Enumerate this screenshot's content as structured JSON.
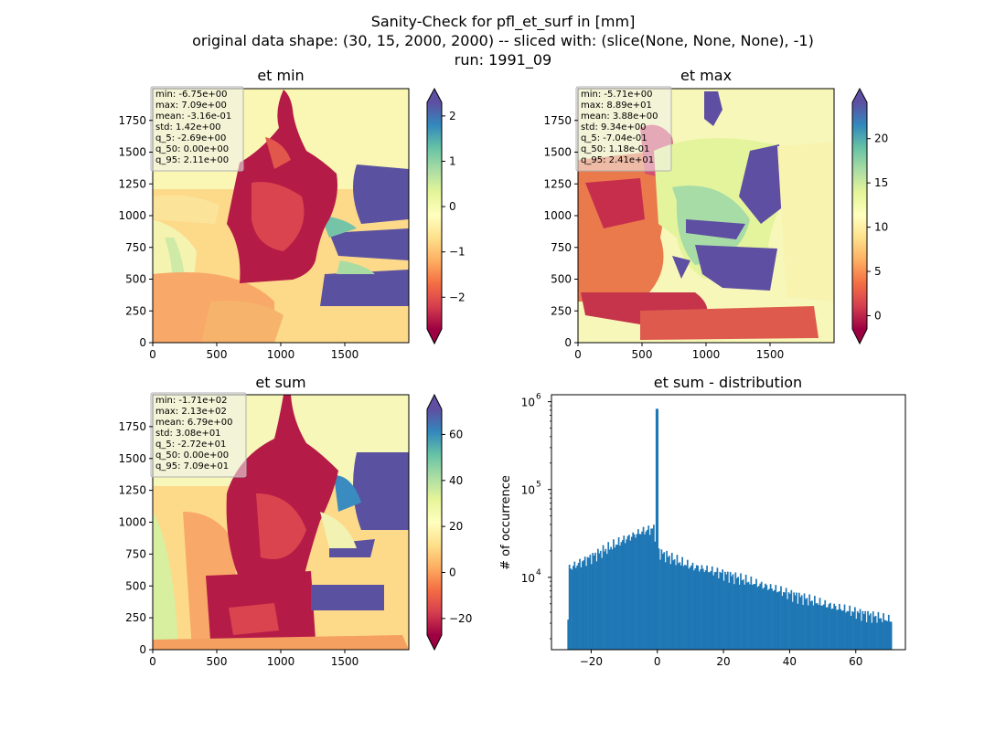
{
  "figure": {
    "title_lines": [
      "Sanity-Check for pfl_et_surf in [mm]",
      "original data shape: (30, 15, 2000, 2000) -- sliced with: (slice(None, None, None), -1)",
      "run: 1991_09"
    ]
  },
  "chart_data": [
    {
      "type": "heatmap",
      "title": "et min",
      "xlim": [
        0,
        2000
      ],
      "ylim": [
        0,
        2000
      ],
      "xticks": [
        "0",
        "500",
        "1000",
        "1500"
      ],
      "yticks": [
        "0",
        "250",
        "500",
        "750",
        "1000",
        "1250",
        "1500",
        "1750"
      ],
      "colorbar": {
        "ticks": [
          "2",
          "1",
          "0",
          "−1",
          "−2"
        ],
        "tick_values": [
          2,
          1,
          0,
          -1,
          -2
        ],
        "range": [
          -2.7,
          2.3
        ],
        "cmap": "Spectral"
      },
      "stats": [
        "min: -6.75e+00",
        "max: 7.09e+00",
        "mean: -3.16e-01",
        "std: 1.42e+00",
        "q_5: -2.69e+00",
        "q_50: 0.00e+00",
        "q_95: 2.11e+00"
      ]
    },
    {
      "type": "heatmap",
      "title": "et max",
      "xlim": [
        0,
        2000
      ],
      "ylim": [
        0,
        2000
      ],
      "xticks": [
        "0",
        "500",
        "1000",
        "1500"
      ],
      "yticks": [
        "0",
        "250",
        "500",
        "750",
        "1000",
        "1250",
        "1500",
        "1750"
      ],
      "colorbar": {
        "ticks": [
          "20",
          "15",
          "10",
          "5",
          "0"
        ],
        "tick_values": [
          20,
          15,
          10,
          5,
          0
        ],
        "range": [
          -1.5,
          24.1
        ],
        "cmap": "Spectral"
      },
      "stats": [
        "min: -5.71e+00",
        "max: 8.89e+01",
        "mean: 3.88e+00",
        "std: 9.34e+00",
        "q_5: -7.04e-01",
        "q_50: 1.18e-01",
        "q_95: 2.41e+01"
      ]
    },
    {
      "type": "heatmap",
      "title": "et sum",
      "xlim": [
        0,
        2000
      ],
      "ylim": [
        0,
        2000
      ],
      "xticks": [
        "0",
        "500",
        "1000",
        "1500"
      ],
      "yticks": [
        "0",
        "250",
        "500",
        "750",
        "1000",
        "1250",
        "1500",
        "1750"
      ],
      "colorbar": {
        "ticks": [
          "60",
          "40",
          "20",
          "0",
          "−20"
        ],
        "tick_values": [
          60,
          40,
          20,
          0,
          -20
        ],
        "range": [
          -27.2,
          70.9
        ],
        "cmap": "Spectral"
      },
      "stats": [
        "min: -1.71e+02",
        "max: 2.13e+02",
        "mean: 6.79e+00",
        "std: 3.08e+01",
        "q_5: -2.72e+01",
        "q_50: 0.00e+00",
        "q_95: 7.09e+01"
      ]
    },
    {
      "type": "bar",
      "title": "et sum - distribution",
      "ylabel": "# of occurrence",
      "xlim": [
        -32,
        75
      ],
      "yscale": "log",
      "ylim": [
        1500,
        1200000
      ],
      "xticks": [
        "−20",
        "0",
        "20",
        "40",
        "60"
      ],
      "xtick_values": [
        -20,
        0,
        20,
        40,
        60
      ],
      "ytick_values": [
        10000,
        100000,
        1000000
      ],
      "yticks": [
        "10",
        "10",
        "10"
      ],
      "ytick_exponents": [
        "4",
        "5",
        "6"
      ],
      "bin_range": [
        -27.2,
        70.9
      ],
      "peak": {
        "x": -0.1,
        "y": 830000
      },
      "envelope": [
        [
          -27,
          12500
        ],
        [
          -20,
          17000
        ],
        [
          -10,
          27000
        ],
        [
          -5,
          33000
        ],
        [
          -1,
          36000
        ],
        [
          0,
          20000
        ],
        [
          5,
          16000
        ],
        [
          10,
          13500
        ],
        [
          20,
          11000
        ],
        [
          30,
          8500
        ],
        [
          40,
          6500
        ],
        [
          50,
          5000
        ],
        [
          60,
          4000
        ],
        [
          70,
          3300
        ]
      ],
      "bar_color": "#1f77b4"
    }
  ]
}
